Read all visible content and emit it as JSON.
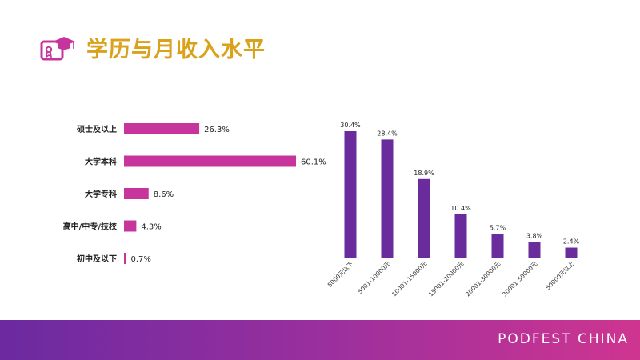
{
  "title": "学历与月收入水平",
  "brand": "PODFEST CHINA",
  "colors": {
    "title": "#d9a21a",
    "education_bar": "#c7359c",
    "income_bar": "#6a2c9d",
    "footer_start": "#6b2aa0",
    "footer_end": "#cf3590"
  },
  "icon": "certificate-graduation-icon",
  "chart_data": [
    {
      "type": "bar",
      "orientation": "horizontal",
      "categories": [
        "硕士及以上",
        "大学本科",
        "大学专科",
        "高中/中专/技校",
        "初中及以下"
      ],
      "values": [
        26.3,
        60.1,
        8.6,
        4.3,
        0.7
      ],
      "labels": [
        "26.3%",
        "60.1%",
        "8.6%",
        "4.3%",
        "0.7%"
      ],
      "unit": "%",
      "xlim": [
        0,
        60.1
      ]
    },
    {
      "type": "bar",
      "orientation": "vertical",
      "categories": [
        "5000元以下",
        "5001-10000元",
        "10001-15000元",
        "15001-20000元",
        "20001-30000元",
        "30001-50000元",
        "50000元以上"
      ],
      "values": [
        30.4,
        28.4,
        18.9,
        10.4,
        5.7,
        3.8,
        2.4
      ],
      "labels": [
        "30.4%",
        "28.4%",
        "18.9%",
        "10.4%",
        "5.7%",
        "3.8%",
        "2.4%"
      ],
      "unit": "%",
      "ylim": [
        0,
        30.4
      ]
    }
  ]
}
